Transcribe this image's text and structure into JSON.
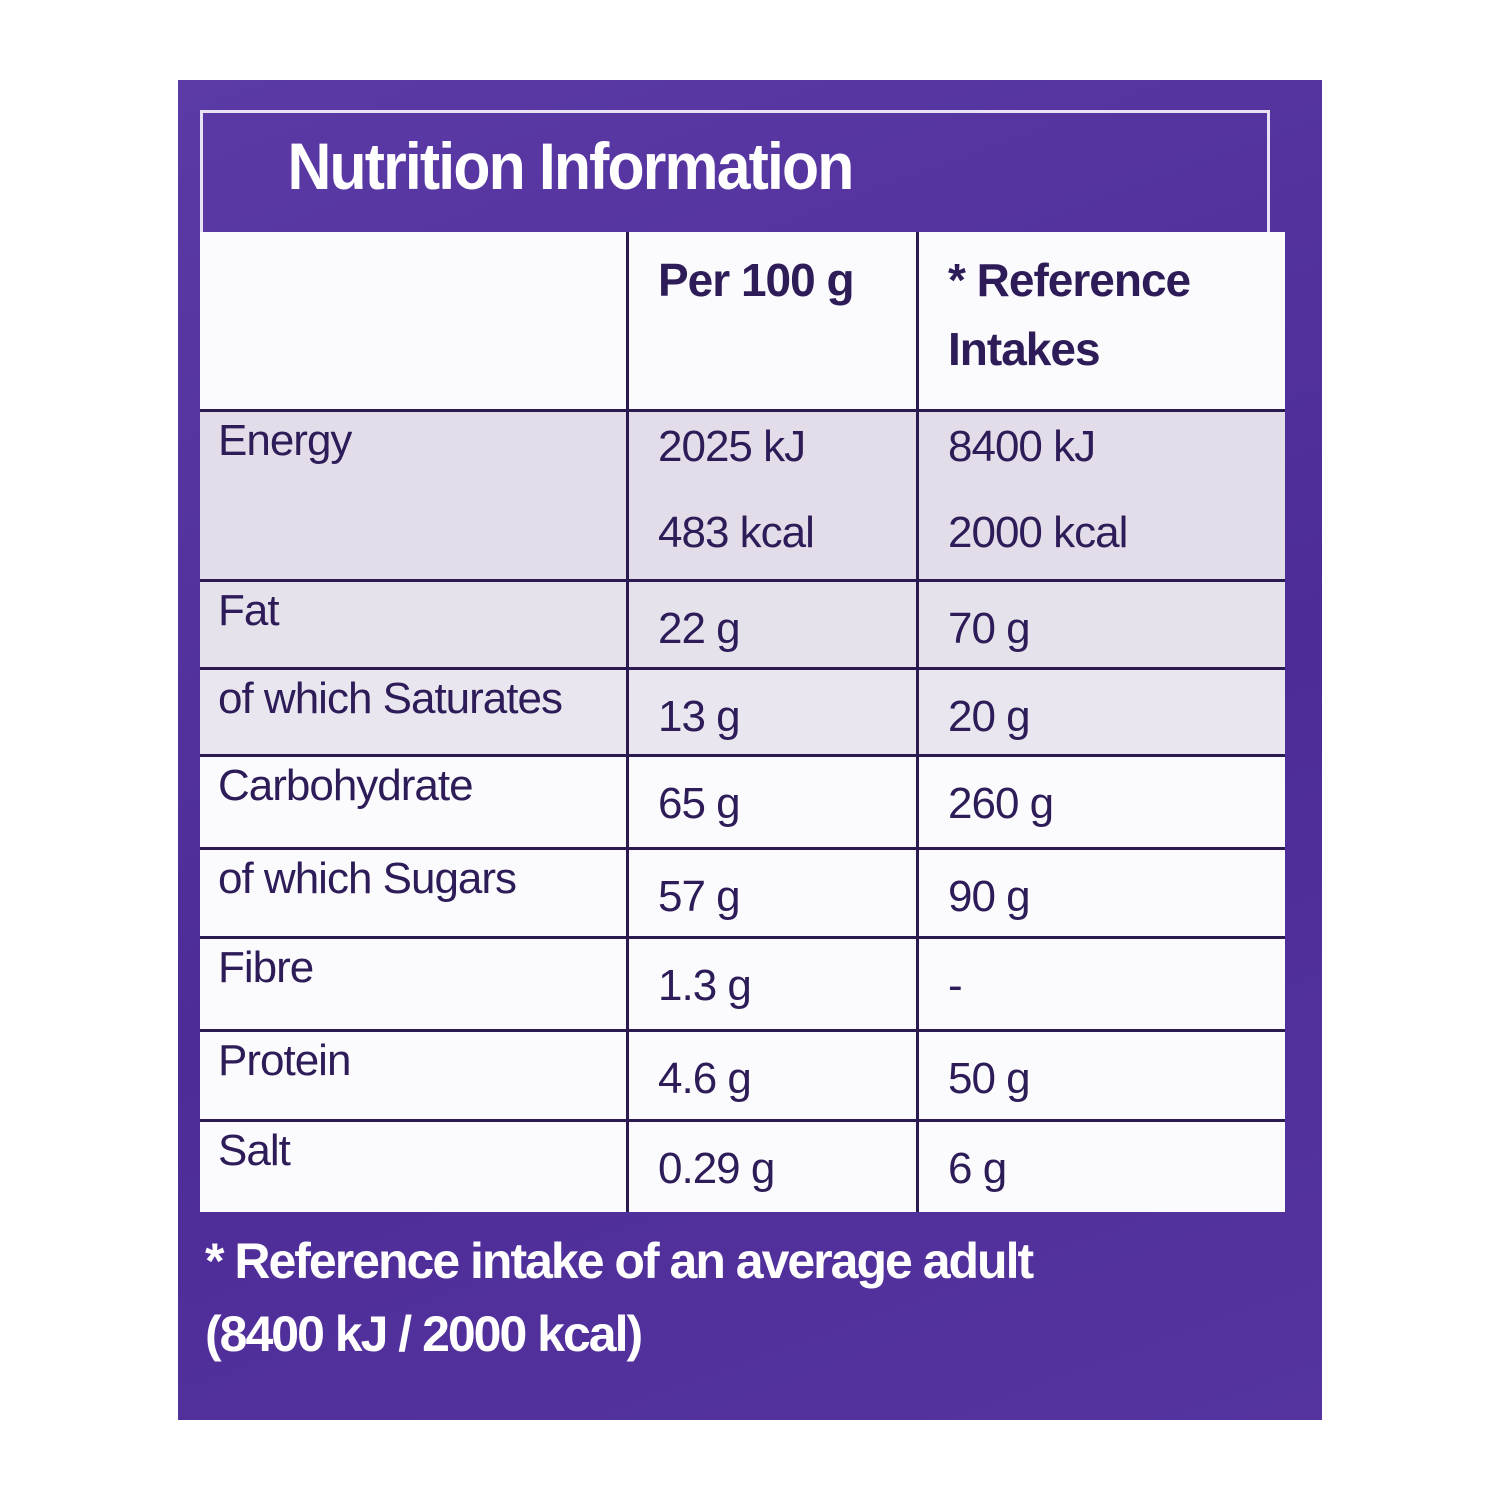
{
  "title": "Nutrition Information",
  "table": {
    "header": [
      "Per 100 g",
      "* Reference Intakes"
    ],
    "rows": [
      [
        "Energy",
        [
          "2025 kJ",
          "483 kcal"
        ],
        [
          "8400 kJ",
          "2000 kcal"
        ]
      ],
      [
        "Fat",
        "22 g",
        "70 g"
      ],
      [
        "of which Saturates",
        "13 g",
        "20 g"
      ],
      [
        "Carbohydrate",
        "65 g",
        "260 g"
      ],
      [
        "of which Sugars",
        "57 g",
        "90 g"
      ],
      [
        "Fibre",
        "1.3 g",
        "-"
      ],
      [
        "Protein",
        "4.6 g",
        "50 g"
      ],
      [
        "Salt",
        "0.29 g",
        "6 g"
      ]
    ]
  },
  "footnote": [
    "* Reference intake of an average adult",
    "(8400 kJ / 2000 kcal)"
  ]
}
